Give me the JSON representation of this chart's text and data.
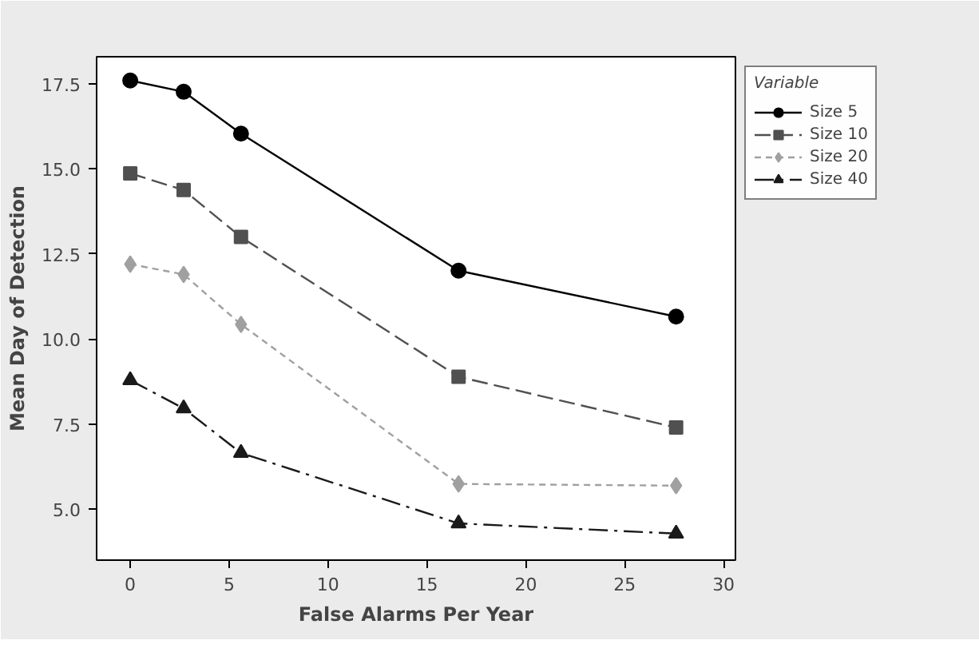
{
  "chart_data": {
    "type": "line",
    "xlabel": "False Alarms Per Year",
    "ylabel": "Mean Day of Detection",
    "legend_title": "Variable",
    "legend": "top right",
    "x": [
      0,
      2.7,
      5.6,
      16.6,
      27.6
    ],
    "xlim": [
      -1.7,
      30.6
    ],
    "xticks": [
      0,
      5,
      10,
      15,
      20,
      25,
      30
    ],
    "ylim": [
      3.5,
      18.3
    ],
    "yticks": [
      {
        "value": 5,
        "label": "5.0"
      },
      {
        "value": 7.5,
        "label": "7.5"
      },
      {
        "value": 10,
        "label": "10.0"
      },
      {
        "value": 12.5,
        "label": "12.5"
      },
      {
        "value": 15,
        "label": "15.0"
      },
      {
        "value": 17.5,
        "label": "17.5"
      }
    ],
    "grid": false,
    "series": [
      {
        "name": "Size 5",
        "color": "#000000",
        "marker": "circle",
        "line_style": "solid",
        "values": [
          17.6,
          17.27,
          16.04,
          12.01,
          10.66
        ]
      },
      {
        "name": "Size 10",
        "color": "#505050",
        "marker": "square",
        "line_style": "dashed",
        "values": [
          14.87,
          14.38,
          13.0,
          8.89,
          7.4
        ]
      },
      {
        "name": "Size 20",
        "color": "#a0a0a0",
        "marker": "diamond",
        "line_style": "dotted",
        "values": [
          12.2,
          11.9,
          10.43,
          5.74,
          5.69
        ]
      },
      {
        "name": "Size 40",
        "color": "#1a1a1a",
        "marker": "triangle",
        "line_style": "dashdot",
        "values": [
          8.79,
          7.96,
          6.65,
          4.58,
          4.28
        ]
      }
    ]
  }
}
